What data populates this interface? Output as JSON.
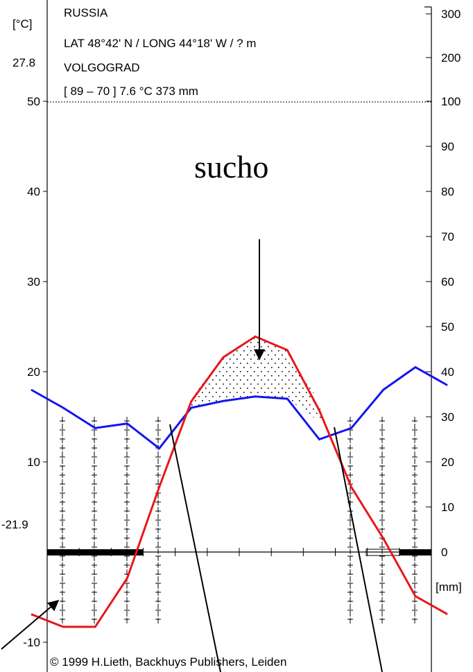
{
  "header": {
    "left_unit": "[°C]",
    "country": "RUSSIA",
    "coords": "LAT 48°42' N  /  LONG 44°18' W  /  ? m",
    "max_temp_label": "27.8",
    "station": "VOLGOGRAD",
    "period_summary": "[ 89 – 70 ]  7.6 °C   373 mm",
    "min_temp_label": "-21.9"
  },
  "annotation": {
    "dry_label": "sucho"
  },
  "footer": {
    "copyright": "© 1999 H.Lieth, Backhuys Publishers, Leiden"
  },
  "chart_data": {
    "type": "line",
    "months": 12,
    "left_axis": {
      "unit": "[°C]",
      "ticks": [
        -10,
        10,
        20,
        30,
        40,
        50
      ],
      "tick_labels": [
        "-10",
        "10",
        "20",
        "30",
        "40",
        "50"
      ],
      "range": [
        -10,
        50
      ]
    },
    "right_axis": {
      "unit": "[mm]",
      "ticks": [
        0,
        10,
        20,
        30,
        40,
        50,
        60,
        70,
        80,
        90,
        100,
        200,
        300
      ],
      "tick_labels": [
        "0",
        "10",
        "20",
        "30",
        "40",
        "50",
        "60",
        "70",
        "80",
        "90",
        "100",
        "200",
        "300"
      ]
    },
    "series": [
      {
        "color": "#e8161b",
        "role": "temperature",
        "values": [
          -6.9,
          -8.3,
          -8.3,
          -2.9,
          7.2,
          16.7,
          21.6,
          23.9,
          22.4,
          15.7,
          7.2,
          1.5,
          -4.9,
          -6.9
        ]
      },
      {
        "color": "#1414f0",
        "role": "precipitation",
        "values_mm": [
          36,
          32,
          27.5,
          28.5,
          23,
          32,
          33.5,
          34.5,
          34,
          25,
          27.5,
          36,
          41,
          37
        ]
      }
    ],
    "dry_period_months": [
      "Jun",
      "Jul",
      "Aug",
      "Sep"
    ],
    "frost_bar_months": [
      "Dec",
      "Jan",
      "Feb",
      "Nov"
    ]
  }
}
